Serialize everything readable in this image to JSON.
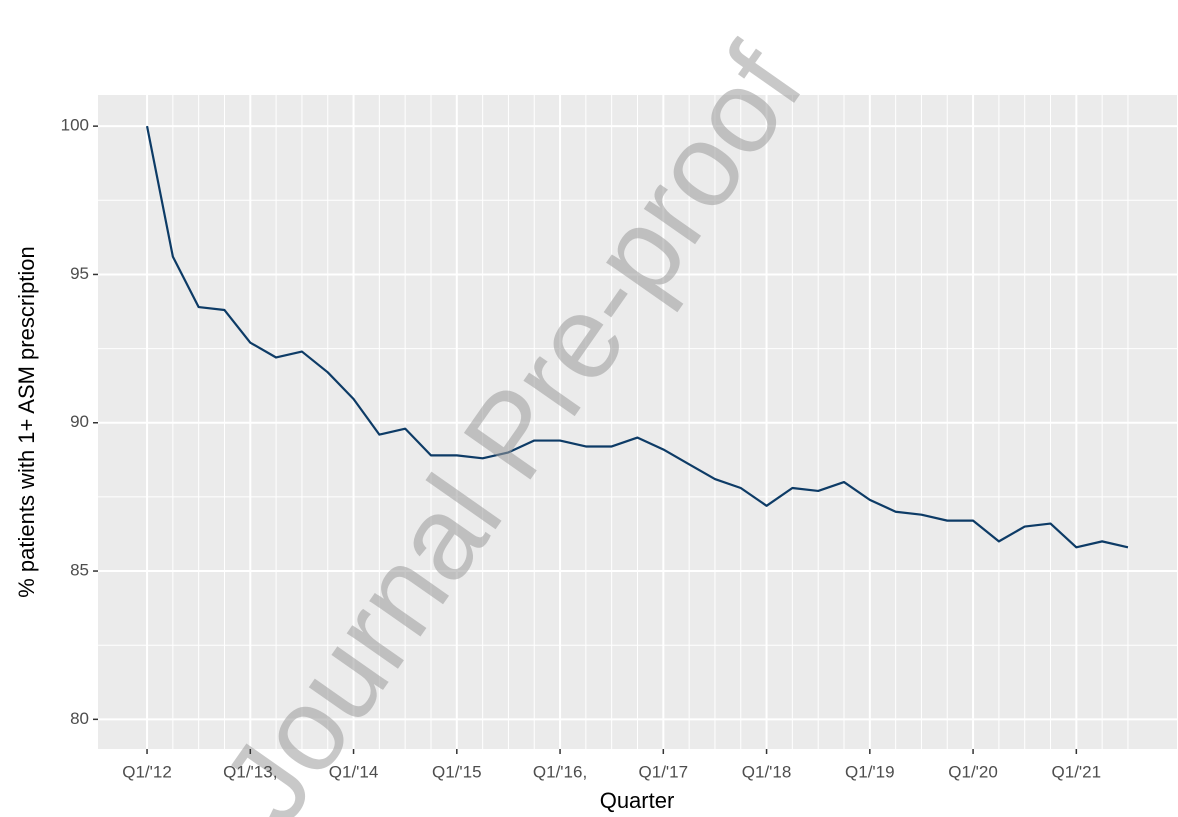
{
  "chart_data": {
    "type": "line",
    "x_label": "Quarter",
    "y_label": "% patients with 1+ ASM prescription",
    "watermark": "Journal Pre-proof",
    "categories": [
      "Q1/'12",
      null,
      null,
      null,
      "Q1/'13,",
      null,
      null,
      null,
      "Q1/'14",
      null,
      null,
      null,
      "Q1/'15",
      null,
      null,
      null,
      "Q1/'16,",
      null,
      null,
      null,
      "Q1/'17",
      null,
      null,
      null,
      "Q1/'18",
      null,
      null,
      null,
      "Q1/'19",
      null,
      null,
      null,
      "Q1/'20",
      null,
      null,
      null,
      "Q1/'21",
      null,
      null
    ],
    "values": [
      100,
      95.6,
      93.9,
      93.8,
      92.7,
      92.2,
      92.4,
      91.7,
      90.8,
      89.6,
      89.8,
      88.9,
      88.9,
      88.8,
      89.0,
      89.4,
      89.4,
      89.2,
      89.2,
      89.5,
      89.1,
      88.6,
      88.1,
      87.8,
      87.2,
      87.8,
      87.7,
      88.0,
      87.4,
      87.0,
      86.9,
      86.7,
      86.7,
      86.0,
      86.5,
      86.6,
      85.8,
      86.0,
      85.8
    ],
    "color": "#0d3b66",
    "ylim": [
      79,
      101.05
    ],
    "yticks": [
      80,
      85,
      90,
      95,
      100
    ],
    "grid": true
  }
}
